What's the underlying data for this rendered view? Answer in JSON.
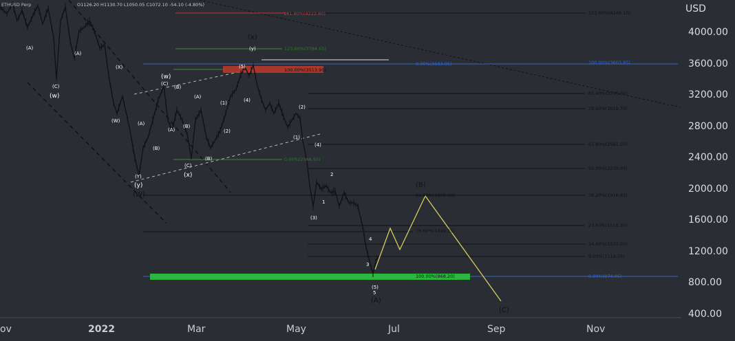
{
  "header": {
    "symbol": "ETHUSD Perp",
    "ohlc": "O1126.20 H1130.70 L1050.05 C1072.10 -54.10 (-4.80%)"
  },
  "axis": {
    "currency": "USD",
    "y_ticks": [
      "4000.00",
      "3600.00",
      "3200.00",
      "2800.00",
      "2400.00",
      "2000.00",
      "1600.00",
      "1200.00",
      "800.00",
      "400.00"
    ],
    "x_ticks": [
      "ov",
      "2022",
      "Mar",
      "May",
      "Jul",
      "Sep",
      "Nov"
    ]
  },
  "fib_labels": {
    "top_red": "161.80%(4222.80)",
    "top_right": "123.60%(4248.10)",
    "green_123": "123.60%(3784.65)",
    "blue_mid": "0.00%(3583.95)",
    "blue_right": "100.00%(3603.85)",
    "red_box": "100.00%(3513.95)",
    "r854": "85.40%(3205.30)",
    "r786": "78.60%(3019.70)",
    "r618": "61.80%(2561.05)",
    "green_0": "0.00%(2366.50)",
    "r50": "50.00%(2238.95)",
    "r382": "38.20%(1916.85)",
    "mid618": "61.80%(1905.00)",
    "mid786": "78.60%(1449.35)",
    "r236": "23.60%(1518.30)",
    "r146": "14.60%(1272.60)",
    "r9": "9.00%(1119.75)",
    "green_box": "100.00%(868.20)",
    "blue_low": "0.00%(874.05)"
  },
  "waves": {
    "w_top": "(w)",
    "x_top": "(x)",
    "w_mid": "(w)",
    "x_mid": "(x)",
    "y_low": "(y)",
    "w_low": "(W)",
    "B": "(B)",
    "C": "(C)",
    "A": "(A)",
    "A1": "(A)",
    "C1": "(C)",
    "W1": "(W)",
    "A2": "(A)",
    "C2": "(C)",
    "B1": "(B)",
    "X": "(X)",
    "Y1": "(Y)",
    "A3": "(A)",
    "B2": "(B)",
    "C3": "(C)",
    "E": "(E)",
    "n1": "(1)",
    "n2": "(2)",
    "n3": "(3)",
    "n4": "(4)",
    "n5": "(5)",
    "s1": "1",
    "s2": "2",
    "s3": "3",
    "s4": "4",
    "s5": "5",
    "sub3": "(3)",
    "sub4": "(4)",
    "sub1": "(1)",
    "sub2": "(2)",
    "n5b": "(5)",
    "xs": "(x)",
    "ys": "(y)",
    "vstack": "(v)"
  }
}
